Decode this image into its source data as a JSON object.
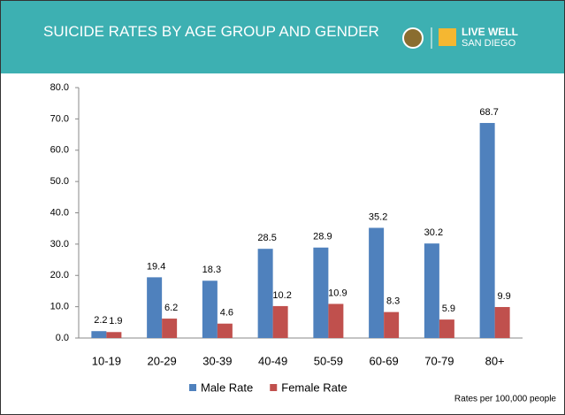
{
  "chart_data": {
    "type": "bar",
    "title": "SUICIDE RATES BY AGE GROUP AND GENDER",
    "categories": [
      "10-19",
      "20-29",
      "30-39",
      "40-49",
      "50-59",
      "60-69",
      "70-79",
      "80+"
    ],
    "series": [
      {
        "name": "Male Rate",
        "color": "#4f81bd",
        "values": [
          2.2,
          19.4,
          18.3,
          28.5,
          28.9,
          35.2,
          30.2,
          68.7
        ]
      },
      {
        "name": "Female Rate",
        "color": "#c0504d",
        "values": [
          1.9,
          6.2,
          4.6,
          10.2,
          10.9,
          8.3,
          5.9,
          9.9
        ]
      }
    ],
    "ylim": [
      0,
      80
    ],
    "yticks": [
      {
        "value": 0,
        "label": "0.0"
      },
      {
        "value": 10,
        "label": "10.0"
      },
      {
        "value": 20,
        "label": "20.0"
      },
      {
        "value": 30,
        "label": "30.0"
      },
      {
        "value": 40,
        "label": "40.0"
      },
      {
        "value": 50,
        "label": "50.0"
      },
      {
        "value": 60,
        "label": "60.0"
      },
      {
        "value": 70,
        "label": "70.0"
      },
      {
        "value": 80,
        "label": "80.0"
      }
    ],
    "grid": false,
    "legend": "bottom",
    "note": "Rates per 100,000 people"
  },
  "logo": [
    "LIVE WELL",
    "SAN DIEGO"
  ]
}
